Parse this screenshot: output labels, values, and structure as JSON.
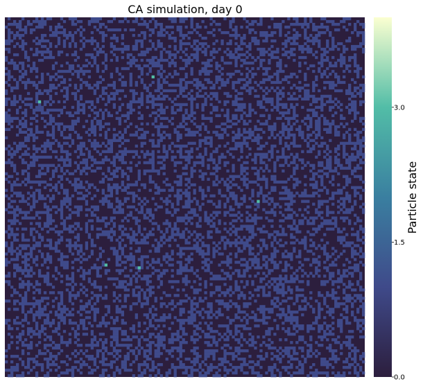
{
  "chart_data": {
    "type": "heatmap",
    "title": "CA simulation, day 0",
    "xlabel": "",
    "ylabel": "",
    "grid_rows": 130,
    "grid_cols": 130,
    "value_range": [
      0,
      4
    ],
    "cell_value_frequencies": {
      "0": 0.62,
      "1": 0.38
    },
    "highlight_cells": [
      {
        "row": 21,
        "col": 53,
        "value": 3
      },
      {
        "row": 30,
        "col": 12,
        "value": 3
      },
      {
        "row": 66,
        "col": 91,
        "value": 3
      },
      {
        "row": 89,
        "col": 36,
        "value": 3
      },
      {
        "row": 90,
        "col": 48,
        "value": 3
      }
    ],
    "colormap": [
      "#2c1e3d",
      "#3f4a8a",
      "#3a7fa0",
      "#52bda7",
      "#fbffd1"
    ],
    "colorbar": {
      "label": "Particle state",
      "ticks": [
        0.0,
        1.5,
        3.0
      ],
      "tick_labels": [
        "0.0",
        "1.5",
        "3.0"
      ]
    }
  }
}
